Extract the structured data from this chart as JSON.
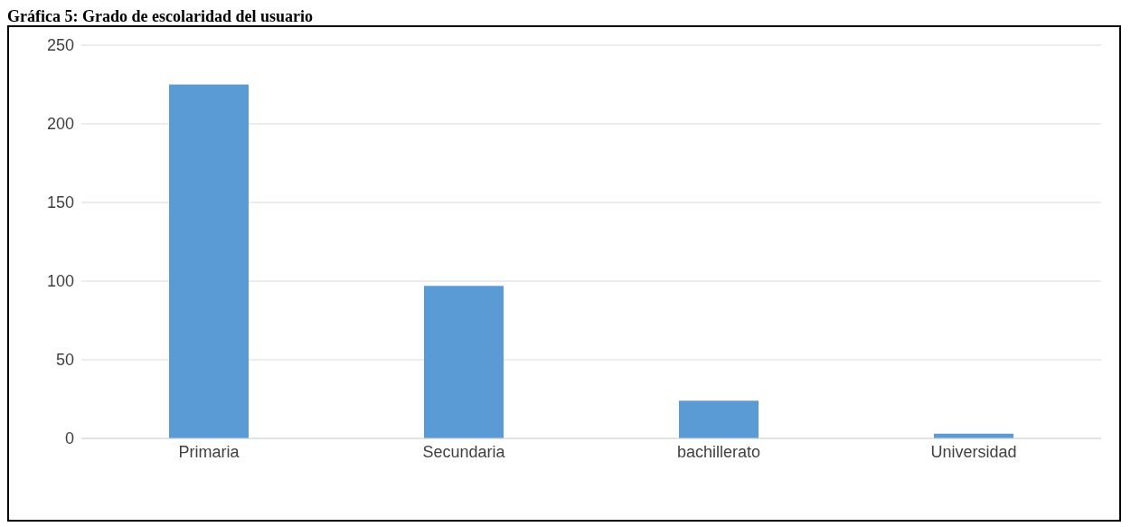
{
  "chart_data": {
    "type": "bar",
    "title": "Gráfica 5: Grado de escolaridad del usuario",
    "categories": [
      "Primaria",
      "Secundaria",
      "bachillerato",
      "Universidad"
    ],
    "values": [
      225,
      97,
      24,
      3
    ],
    "color": "#5b9bd5",
    "ylim": [
      0,
      250
    ],
    "yticks": [
      0,
      50,
      100,
      150,
      200,
      250
    ],
    "grid": "y"
  }
}
